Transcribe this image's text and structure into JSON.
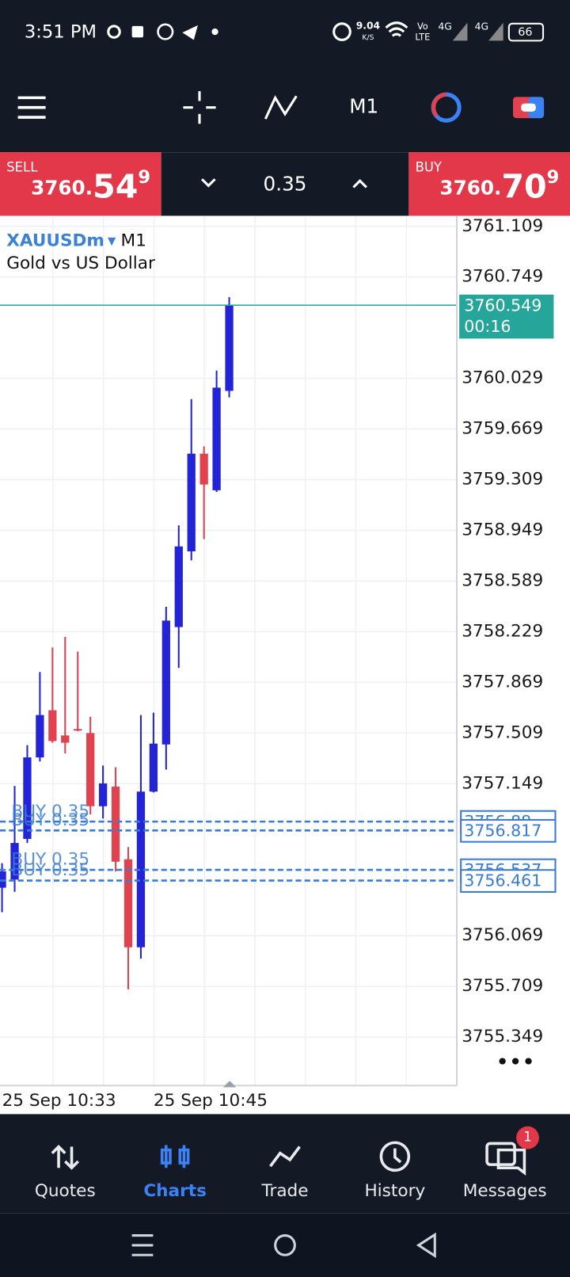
{
  "status_bar": {
    "time": "3:51 PM",
    "net_speed": "9.04",
    "net_unit": "K/S",
    "volte_top": "Vo",
    "volte_bottom": "LTE",
    "signal_1": "4G",
    "signal_2": "4G",
    "battery": "66"
  },
  "toolbar": {
    "timeframe": "M1"
  },
  "trade_panel": {
    "sell_label": "SELL",
    "sell_price_main": "3760.",
    "sell_price_big": "54",
    "sell_price_sup": "9",
    "volume": "0.35",
    "buy_label": "BUY",
    "buy_price_main": "3760.",
    "buy_price_big": "70",
    "buy_price_sup": "9"
  },
  "chart": {
    "symbol": "XAUUSDm",
    "timeframe": "M1",
    "description": "Gold vs US Dollar",
    "ylim": [
      3755.004,
      3761.184
    ],
    "yticks": [
      3761.109,
      3760.749,
      3760.029,
      3759.669,
      3759.309,
      3758.949,
      3758.589,
      3758.229,
      3757.869,
      3757.509,
      3757.149,
      3756.069,
      3755.709,
      3755.349
    ],
    "bull_color": "#2323d8",
    "bear_color": "#e0434f",
    "candles": [
      {
        "open": 3756.41,
        "high": 3756.584,
        "low": 3756.236,
        "close": 3756.526
      },
      {
        "open": 3756.468,
        "high": 3757.133,
        "low": 3756.381,
        "close": 3756.728
      },
      {
        "open": 3756.757,
        "high": 3757.423,
        "low": 3756.728,
        "close": 3757.336
      },
      {
        "open": 3757.336,
        "high": 3757.943,
        "low": 3757.307,
        "close": 3757.637
      },
      {
        "open": 3757.671,
        "high": 3758.117,
        "low": 3757.44,
        "close": 3757.452
      },
      {
        "open": 3757.492,
        "high": 3758.192,
        "low": 3757.365,
        "close": 3757.44
      },
      {
        "open": 3757.538,
        "high": 3758.088,
        "low": 3757.521,
        "close": 3757.527
      },
      {
        "open": 3757.509,
        "high": 3757.625,
        "low": 3756.931,
        "close": 3756.989
      },
      {
        "open": 3756.989,
        "high": 3757.278,
        "low": 3756.902,
        "close": 3757.151
      },
      {
        "open": 3757.128,
        "high": 3757.266,
        "low": 3756.526,
        "close": 3756.595
      },
      {
        "open": 3756.612,
        "high": 3756.699,
        "low": 3755.687,
        "close": 3755.987
      },
      {
        "open": 3755.987,
        "high": 3757.637,
        "low": 3755.906,
        "close": 3757.093
      },
      {
        "open": 3757.093,
        "high": 3757.654,
        "low": 3757.087,
        "close": 3757.434
      },
      {
        "open": 3757.428,
        "high": 3758.406,
        "low": 3757.249,
        "close": 3758.308
      },
      {
        "open": 3758.262,
        "high": 3758.985,
        "low": 3757.972,
        "close": 3758.835
      },
      {
        "open": 3758.8,
        "high": 3759.882,
        "low": 3758.736,
        "close": 3759.494
      },
      {
        "open": 3759.494,
        "high": 3759.546,
        "low": 3758.887,
        "close": 3759.275
      },
      {
        "open": 3759.234,
        "high": 3760.085,
        "low": 3759.222,
        "close": 3759.963
      },
      {
        "open": 3759.94,
        "high": 3760.606,
        "low": 3759.894,
        "close": 3760.549
      }
    ],
    "current_price": 3760.549,
    "countdown": "00:16",
    "orders": [
      {
        "label": "BUY 0.35",
        "price": 3756.88
      },
      {
        "label": "BUY 0.35",
        "price": 3756.817
      },
      {
        "label": "BUY 0.35",
        "price": 3756.537
      },
      {
        "label": "BUY 0.35",
        "price": 3756.461
      }
    ],
    "time_labels": [
      "25 Sep 10:33",
      "25 Sep 10:45"
    ]
  },
  "nav": {
    "items": [
      "Quotes",
      "Charts",
      "Trade",
      "History",
      "Messages"
    ],
    "active_index": 1,
    "messages_badge": "1"
  }
}
